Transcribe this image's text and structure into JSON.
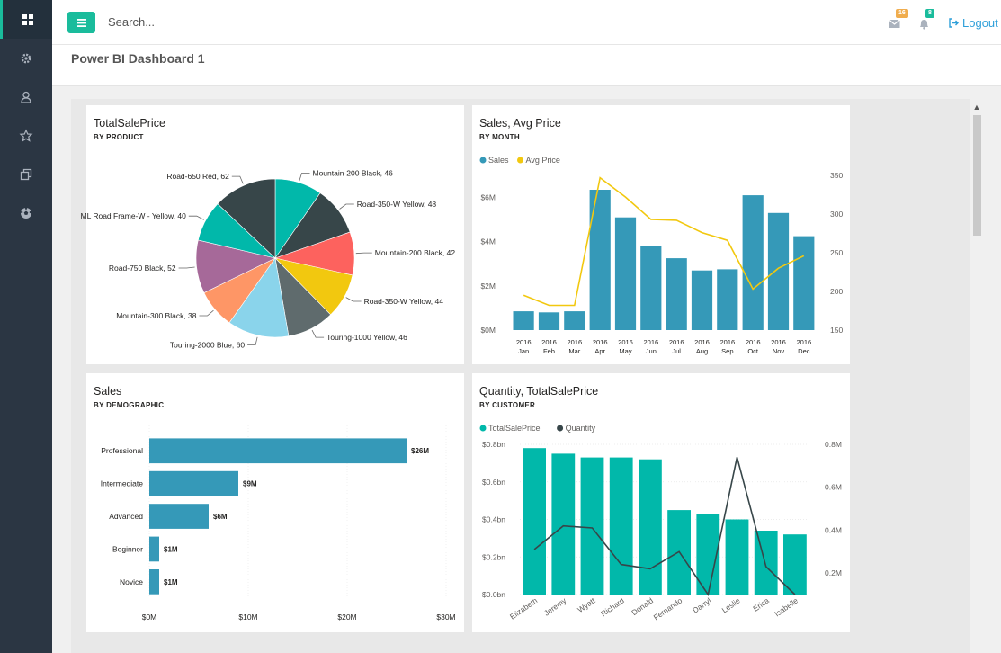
{
  "topbar": {
    "search_placeholder": "Search...",
    "mail_badge": "16",
    "bell_badge": "8",
    "logout_label": "Logout"
  },
  "page": {
    "title": "Power BI Dashboard 1"
  },
  "colors": {
    "sidebar": "#2b3643",
    "accent": "#1abc9c",
    "mail_badge": "#f0ad4e",
    "bell_badge": "#1abc9c",
    "bar_blue": "#3599b8",
    "line_yellow": "#f2c80f",
    "bar_teal": "#01b8aa",
    "line_dark": "#374649"
  },
  "sidebar": {
    "items": [
      {
        "icon": "dashboard-icon",
        "active": true
      },
      {
        "icon": "gear-icon",
        "active": false
      },
      {
        "icon": "user-icon",
        "active": false
      },
      {
        "icon": "star-icon",
        "active": false
      },
      {
        "icon": "clone-icon",
        "active": false
      },
      {
        "icon": "soccer-ball-icon",
        "active": false
      }
    ]
  },
  "chart_data": [
    {
      "type": "pie",
      "title": "TotalSalePrice",
      "subtitle": "BY PRODUCT",
      "slices": [
        {
          "label": "Mountain-200 Black, 46",
          "value": 46,
          "color": "#01b8aa"
        },
        {
          "label": "Road-350-W Yellow, 48",
          "value": 48,
          "color": "#374649"
        },
        {
          "label": "Mountain-200 Black, 42",
          "value": 42,
          "color": "#fd625e"
        },
        {
          "label": "Road-350-W Yellow, 44",
          "value": 44,
          "color": "#f2c80f"
        },
        {
          "label": "Touring-1000 Yellow, 46",
          "value": 46,
          "color": "#5f6b6d"
        },
        {
          "label": "Touring-2000 Blue, 60",
          "value": 60,
          "color": "#8ad4eb"
        },
        {
          "label": "Mountain-300 Black, 38",
          "value": 38,
          "color": "#fe9666"
        },
        {
          "label": "Road-750 Black, 52",
          "value": 52,
          "color": "#a66999"
        },
        {
          "label": "ML Road Frame-W - Yellow, 40",
          "value": 40,
          "color": "#01b8aa"
        },
        {
          "label": "Road-650 Red, 62",
          "value": 62,
          "color": "#374649"
        }
      ]
    },
    {
      "type": "bar",
      "title": "Sales, Avg Price",
      "subtitle": "BY MONTH",
      "categories": [
        "2016 Jan",
        "2016 Feb",
        "2016 Mar",
        "2016 Apr",
        "2016 May",
        "2016 Jun",
        "2016 Jul",
        "2016 Aug",
        "2016 Sep",
        "2016 Oct",
        "2016 Nov",
        "2016 Dec"
      ],
      "category_lines": [
        [
          "2016",
          "Jan"
        ],
        [
          "2016",
          "Feb"
        ],
        [
          "2016",
          "Mar"
        ],
        [
          "2016",
          "Apr"
        ],
        [
          "2016",
          "May"
        ],
        [
          "2016",
          "Jun"
        ],
        [
          "2016",
          "Jul"
        ],
        [
          "2016",
          "Aug"
        ],
        [
          "2016",
          "Sep"
        ],
        [
          "2016",
          "Oct"
        ],
        [
          "2016",
          "Nov"
        ],
        [
          "2016",
          "Dec"
        ]
      ],
      "series": [
        {
          "name": "Sales",
          "values": [
            0.85,
            0.8,
            0.85,
            6.35,
            5.1,
            3.8,
            3.25,
            2.7,
            2.75,
            6.1,
            5.3,
            4.25
          ]
        },
        {
          "name": "Avg Price",
          "values": [
            195,
            182,
            182,
            347,
            322,
            293,
            292,
            276,
            266,
            203,
            230,
            246
          ]
        }
      ],
      "y_left": {
        "ticks": [
          "$0M",
          "$2M",
          "$4M",
          "$6M"
        ],
        "min": 0,
        "max": 7
      },
      "y_right": {
        "ticks": [
          "150",
          "200",
          "250",
          "300",
          "350"
        ],
        "min": 150,
        "max": 350
      },
      "legend": "top-left"
    },
    {
      "type": "bar",
      "orientation": "horizontal",
      "title": "Sales",
      "subtitle": "BY DEMOGRAPHIC",
      "categories": [
        "Professional",
        "Intermediate",
        "Advanced",
        "Beginner",
        "Novice"
      ],
      "values": [
        26,
        9,
        6,
        1,
        1
      ],
      "data_labels": [
        "$26M",
        "$9M",
        "$6M",
        "$1M",
        "$1M"
      ],
      "x_ticks": [
        "$0M",
        "$10M",
        "$20M",
        "$30M"
      ],
      "xlim": [
        0,
        30
      ]
    },
    {
      "type": "bar",
      "title": "Quantity, TotalSalePrice",
      "subtitle": "BY CUSTOMER",
      "categories": [
        "Elizabeth",
        "Jeremy",
        "Wyatt",
        "Richard",
        "Donald",
        "Fernando",
        "Darryl",
        "Leslie",
        "Erica",
        "Isabelle"
      ],
      "series": [
        {
          "name": "TotalSalePrice",
          "values": [
            0.78,
            0.75,
            0.73,
            0.73,
            0.72,
            0.45,
            0.43,
            0.4,
            0.34,
            0.32
          ]
        },
        {
          "name": "Quantity",
          "values": [
            0.31,
            0.42,
            0.41,
            0.24,
            0.22,
            0.3,
            0.1,
            0.74,
            0.23,
            0.1
          ]
        }
      ],
      "y_left": {
        "ticks": [
          "$0.0bn",
          "$0.2bn",
          "$0.4bn",
          "$0.6bn",
          "$0.8bn"
        ],
        "min": 0,
        "max": 0.8
      },
      "y_right": {
        "ticks": [
          "0.2M",
          "0.4M",
          "0.6M",
          "0.8M"
        ],
        "min": 0.1,
        "max": 0.8
      },
      "legend": "top-left"
    }
  ]
}
